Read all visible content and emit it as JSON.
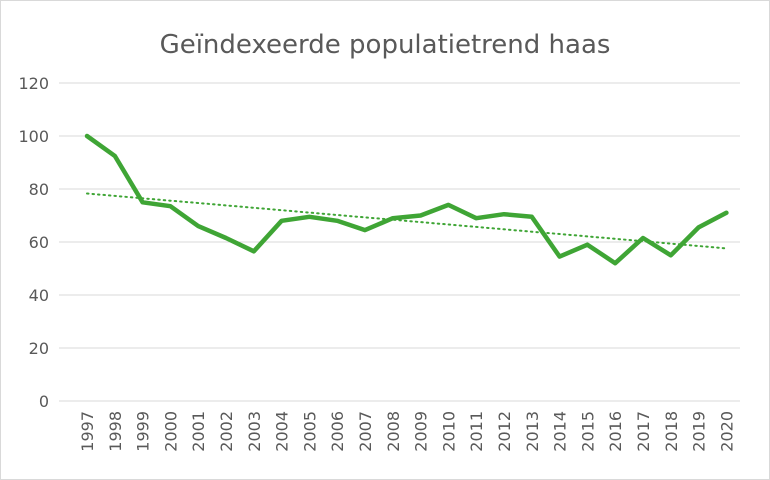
{
  "chart_data": {
    "type": "line",
    "title": "Geïndexeerde populatietrend haas",
    "xlabel": "",
    "ylabel": "",
    "ylim": [
      0,
      120
    ],
    "yticks": [
      0,
      20,
      40,
      60,
      80,
      100,
      120
    ],
    "grid": true,
    "legend": "none",
    "x": [
      "1997",
      "1998",
      "1999",
      "2000",
      "2001",
      "2002",
      "2003",
      "2004",
      "2005",
      "2006",
      "2007",
      "2008",
      "2009",
      "2010",
      "2011",
      "2012",
      "2013",
      "2014",
      "2015",
      "2016",
      "2017",
      "2018",
      "2019",
      "2020"
    ],
    "series": [
      {
        "color": "#3fa535",
        "style": "solid",
        "values": [
          100,
          92.5,
          75,
          73.5,
          66,
          61.5,
          56.5,
          68,
          69.5,
          68,
          64.5,
          69,
          70,
          74,
          69,
          70.5,
          69.5,
          54.5,
          59,
          52,
          61.5,
          55,
          65.5,
          71
        ]
      },
      {
        "color": "#3fa535",
        "style": "dotted",
        "values": [
          78.3,
          77.4,
          76.5,
          75.6,
          74.7,
          73.8,
          72.9,
          72.0,
          71.1,
          70.2,
          69.3,
          68.4,
          67.5,
          66.6,
          65.7,
          64.8,
          63.9,
          63.0,
          62.1,
          61.2,
          60.3,
          59.4,
          58.5,
          57.6
        ]
      }
    ]
  }
}
